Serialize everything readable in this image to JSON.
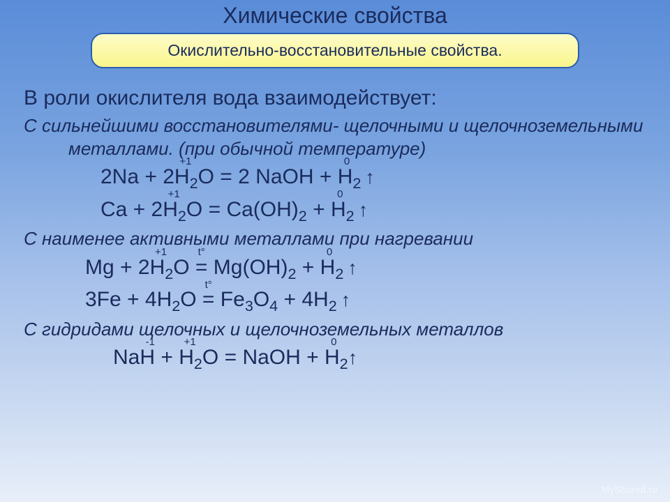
{
  "slide": {
    "title": "Химические свойства",
    "box_text": "Окислительно-восстановительные свойства.",
    "intro": "В роли окислителя вода взаимодействует:",
    "section1_text": "С сильнейшими восстановителями- щелочными и щелочноземельными металлами. (при обычной температуре)",
    "section2_text": "С наименее активными металлами при нагревании",
    "section3_text": "С гидридами щелочных и щелочноземельных металлов",
    "ox_plus1": "+1",
    "ox_minus1": "-1",
    "ox_zero": "0",
    "tdeg": "t°",
    "footer": "MyShared.ru",
    "colors": {
      "title_color": "#1a2b5c",
      "box_bg_top": "#fdfbc8",
      "box_bg_bottom": "#faf68c",
      "box_border": "#2a5fb0",
      "bg_top": "#5a8cd8",
      "bg_bottom": "#e8eff9"
    },
    "fonts": {
      "title_size": 32,
      "box_size": 23,
      "intro_size": 30,
      "sub_size": 26,
      "eq_size": 30
    }
  }
}
